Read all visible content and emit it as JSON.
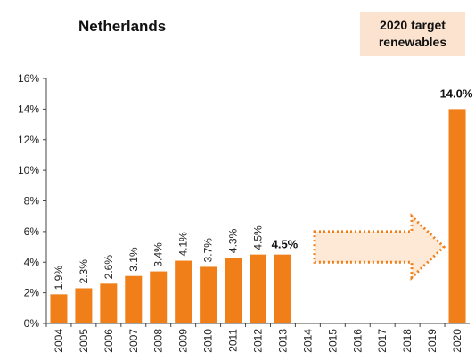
{
  "title": "Netherlands",
  "target_box": {
    "line1": "2020 target",
    "line2": "renewables"
  },
  "chart_data": {
    "type": "bar",
    "title": "Netherlands",
    "categories": [
      "2004",
      "2005",
      "2006",
      "2007",
      "2008",
      "2009",
      "2010",
      "2011",
      "2012",
      "2013",
      "2014",
      "2015",
      "2016",
      "2017",
      "2018",
      "2019",
      "2020"
    ],
    "values": [
      1.9,
      2.3,
      2.6,
      3.1,
      3.4,
      4.1,
      3.7,
      4.3,
      4.5,
      4.5,
      null,
      null,
      null,
      null,
      null,
      null,
      14.0
    ],
    "data_labels": [
      "1.9%",
      "2.3%",
      "2.6%",
      "3.1%",
      "3.4%",
      "4.1%",
      "3.7%",
      "4.3%",
      "4.5%",
      "4.5%",
      "",
      "",
      "",
      "",
      "",
      "",
      "14.0%"
    ],
    "y_ticks": [
      "0%",
      "2%",
      "4%",
      "6%",
      "8%",
      "10%",
      "12%",
      "14%",
      "16%"
    ],
    "ylim": [
      0,
      16
    ],
    "grid": false,
    "bar_color": "#f07f1a",
    "annotation": "dotted arrow from 2014 to 2019"
  }
}
